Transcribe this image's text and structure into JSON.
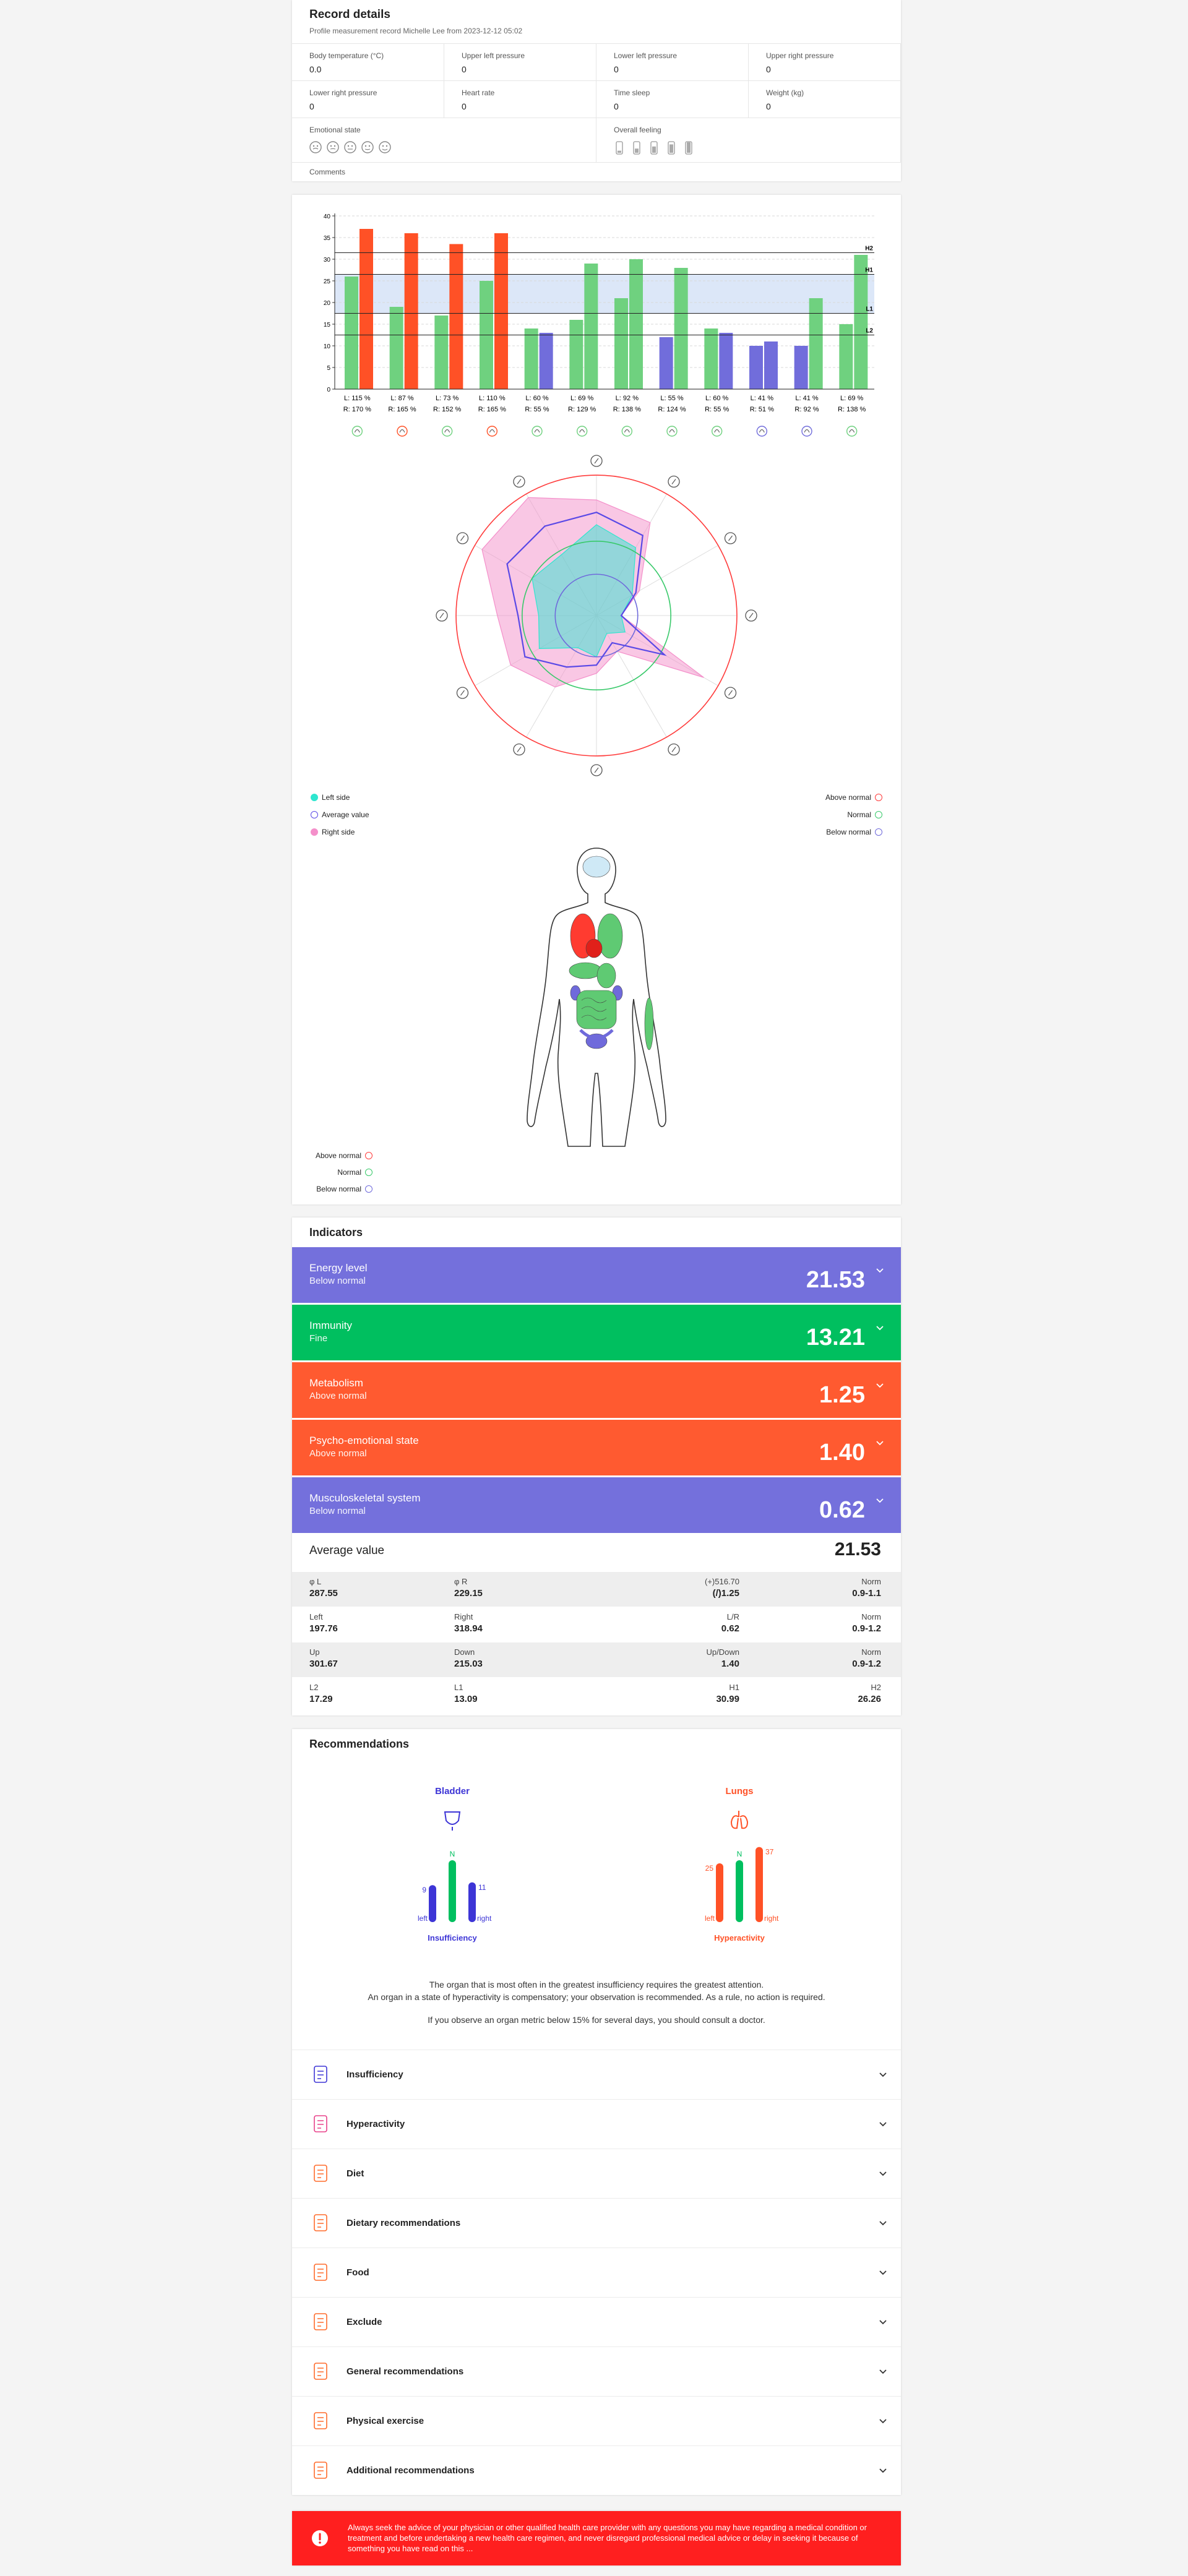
{
  "record": {
    "title": "Record details",
    "subtitle": "Profile measurement record Michelle Lee from 2023-12-12 05:02",
    "fields": [
      {
        "label": "Body temperature (°C)",
        "value": "0.0"
      },
      {
        "label": "Upper left pressure",
        "value": "0"
      },
      {
        "label": "Lower left pressure",
        "value": "0"
      },
      {
        "label": "Upper right pressure",
        "value": "0"
      },
      {
        "label": "Lower right pressure",
        "value": "0"
      },
      {
        "label": "Heart rate",
        "value": "0"
      },
      {
        "label": "Time sleep",
        "value": "0"
      },
      {
        "label": "Weight (kg)",
        "value": "0"
      }
    ],
    "emotional_state": "Emotional state",
    "overall_feeling": "Overall feeling",
    "comments": "Comments"
  },
  "chart_data": {
    "type": "bar",
    "categories": [
      [
        "L: 115 %",
        "R: 170 %"
      ],
      [
        "L: 87 %",
        "R: 165 %"
      ],
      [
        "L: 73 %",
        "R: 152 %"
      ],
      [
        "L: 110 %",
        "R: 165 %"
      ],
      [
        "L: 60 %",
        "R: 55 %"
      ],
      [
        "L: 69 %",
        "R: 129 %"
      ],
      [
        "L: 92 %",
        "R: 138 %"
      ],
      [
        "L: 55 %",
        "R: 124 %"
      ],
      [
        "L: 60 %",
        "R: 55 %"
      ],
      [
        "L: 41 %",
        "R: 51 %"
      ],
      [
        "L: 41 %",
        "R: 92 %"
      ],
      [
        "L: 69 %",
        "R: 138 %"
      ]
    ],
    "series": [
      {
        "values": [
          26,
          19,
          17,
          25,
          14,
          16,
          21,
          12,
          14,
          10,
          10,
          15
        ],
        "colors": [
          "#6fd17f",
          "#6fd17f",
          "#6fd17f",
          "#6fd17f",
          "#6fd17f",
          "#6fd17f",
          "#6fd17f",
          "#716ddb",
          "#6fd17f",
          "#716ddb",
          "#716ddb",
          "#6fd17f"
        ]
      },
      {
        "values": [
          37,
          36,
          33.5,
          36,
          13,
          29,
          30,
          28,
          13,
          11,
          21,
          31
        ],
        "colors": [
          "#ff5126",
          "#ff5126",
          "#ff5126",
          "#ff5126",
          "#716ddb",
          "#6fd17f",
          "#6fd17f",
          "#6fd17f",
          "#716ddb",
          "#716ddb",
          "#6fd17f",
          "#6fd17f"
        ]
      }
    ],
    "ylim": [
      0,
      40
    ],
    "yticks": [
      0,
      5,
      10,
      15,
      20,
      25,
      30,
      35,
      40
    ],
    "grid": true,
    "reference_lines": [
      {
        "label": "H2",
        "value": 31.5
      },
      {
        "label": "H1",
        "value": 26.5
      },
      {
        "label": "L1",
        "value": 17.5
      },
      {
        "label": "L2",
        "value": 12.5
      }
    ],
    "band_between": [
      "L1",
      "H1"
    ],
    "band_color": "#dce7f8"
  },
  "radar": {
    "type": "radar",
    "rlim": [
      0,
      200
    ],
    "legend": "bottom-left",
    "rings_legend": "bottom-right",
    "series": [
      {
        "name": "Left side",
        "color": "#2ee6cf",
        "fill": true,
        "values": [
          110,
          95,
          50,
          30,
          40,
          25,
          50,
          45,
          80,
          70,
          90,
          85
        ]
      },
      {
        "name": "Average value",
        "color": "#5a49e6",
        "fill": false,
        "values": [
          125,
          112,
          55,
          30,
          95,
          38,
          60,
          72,
          100,
          95,
          125,
          125
        ]
      },
      {
        "name": "Right side",
        "color": "#f48fca",
        "fill": true,
        "values": [
          140,
          130,
          60,
          30,
          150,
          50,
          70,
          100,
          120,
          120,
          160,
          165
        ]
      }
    ],
    "rings": [
      {
        "name": "Above normal",
        "color": "#ff3b3b",
        "value": 170
      },
      {
        "name": "Normal",
        "color": "#38c96a",
        "value": 90
      },
      {
        "name": "Below normal",
        "color": "#6f6adb",
        "value": 50
      }
    ]
  },
  "body_legend": [
    {
      "name": "Above normal",
      "color": "#ff3b3b"
    },
    {
      "name": "Normal",
      "color": "#38c96a"
    },
    {
      "name": "Below normal",
      "color": "#6f6adb"
    }
  ],
  "indicators": {
    "title": "Indicators",
    "items": [
      {
        "name": "Energy level",
        "status": "Below normal",
        "value": "21.53",
        "color": "#7470dc"
      },
      {
        "name": "Immunity",
        "status": "Fine",
        "value": "13.21",
        "color": "#00bf5f"
      },
      {
        "name": "Metabolism",
        "status": "Above normal",
        "value": "1.25",
        "color": "#ff5a30"
      },
      {
        "name": "Psycho-emotional state",
        "status": "Above normal",
        "value": "1.40",
        "color": "#ff5a30"
      },
      {
        "name": "Musculoskeletal system",
        "status": "Below normal",
        "value": "0.62",
        "color": "#7470dc"
      }
    ],
    "average": {
      "label": "Average value",
      "value": "21.53"
    },
    "table": [
      [
        {
          "label": "φ L",
          "value": "287.55"
        },
        {
          "label": "φ R",
          "value": "229.15"
        },
        {
          "label": "(+)516.70",
          "value": "(/)1.25"
        },
        {
          "label": "Norm",
          "value": "0.9-1.1"
        }
      ],
      [
        {
          "label": "Left",
          "value": "197.76"
        },
        {
          "label": "Right",
          "value": "318.94"
        },
        {
          "label": "L/R",
          "value": "0.62"
        },
        {
          "label": "Norm",
          "value": "0.9-1.2"
        }
      ],
      [
        {
          "label": "Up",
          "value": "301.67"
        },
        {
          "label": "Down",
          "value": "215.03"
        },
        {
          "label": "Up/Down",
          "value": "1.40"
        },
        {
          "label": "Norm",
          "value": "0.9-1.2"
        }
      ],
      [
        {
          "label": "L2",
          "value": "17.29"
        },
        {
          "label": "L1",
          "value": "13.09"
        },
        {
          "label": "H1",
          "value": "30.99"
        },
        {
          "label": "H2",
          "value": "26.26"
        }
      ]
    ]
  },
  "recommendations": {
    "title": "Recommendations",
    "norm_color": "#00bf5f",
    "organs": [
      {
        "name": "Bladder",
        "color": "#3d35d6",
        "left": 9,
        "right": 11,
        "norm": "N",
        "left_label": "left",
        "right_label": "right",
        "state": "Insufficiency"
      },
      {
        "name": "Lungs",
        "color": "#ff5126",
        "left": 25,
        "right": 37,
        "norm": "N",
        "left_label": "left",
        "right_label": "right",
        "state": "Hyperactivity"
      }
    ],
    "notes": [
      "The organ that is most often in the greatest insufficiency requires the greatest attention.",
      "An organ in a state of hyperactivity is compensatory; your observation is recommended. As a rule, no action is required.",
      "If you observe an organ metric below 15% for several days, you should consult a doctor."
    ],
    "sections": [
      "Insufficiency",
      "Hyperactivity",
      "Diet",
      "Dietary recommendations",
      "Food",
      "Exclude",
      "General recommendations",
      "Physical exercise",
      "Additional recommendations"
    ],
    "disclaimer": "Always seek the advice of your physician or other qualified health care provider with any questions you may have regarding a medical condition or treatment and before undertaking a new health care regimen, and never disregard professional medical advice or delay in seeking it because of something you have read on this ..."
  }
}
